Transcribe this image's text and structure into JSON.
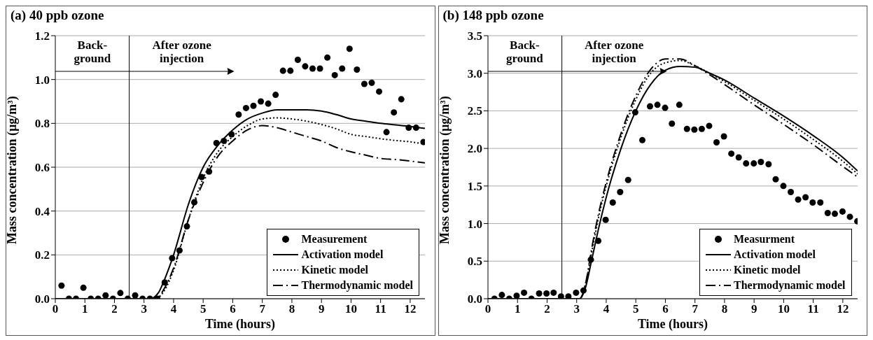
{
  "chart_data": [
    {
      "type": "line",
      "title": "(a) 40 ppb ozone",
      "xlabel": "Time (hours)",
      "ylabel": "Mass concentration (µg/m³)",
      "xlim": [
        0,
        12.5
      ],
      "xticks": [
        0,
        1,
        2,
        3,
        4,
        5,
        6,
        7,
        8,
        9,
        10,
        11,
        12
      ],
      "ylim": [
        0,
        1.2
      ],
      "yticks": [
        {
          "value": 0,
          "label": "0.0"
        },
        0.2,
        0.4,
        0.6,
        0.8,
        {
          "value": 1,
          "label": "1.0"
        },
        1.2
      ],
      "grid": "y",
      "legend": "bottom right",
      "ref_lines": [
        {
          "axis": "x",
          "value": 2.5,
          "color": "#000000"
        }
      ],
      "annotations": [
        "Back-\nground",
        "After ozone\ninjection"
      ],
      "series": [
        {
          "name": "Measurement",
          "type": "scatter",
          "marker": "circle",
          "color": "#000000",
          "x": [
            0.21,
            0.46,
            0.7,
            0.95,
            1.2,
            1.45,
            1.7,
            1.95,
            2.2,
            2.45,
            2.7,
            2.95,
            3.2,
            3.45,
            3.7,
            3.95,
            4.2,
            4.45,
            4.7,
            4.95,
            5.2,
            5.45,
            5.7,
            5.96,
            6.2,
            6.45,
            6.7,
            6.95,
            7.2,
            7.45,
            7.7,
            7.95,
            8.2,
            8.45,
            8.7,
            8.95,
            9.2,
            9.45,
            9.7,
            9.95,
            10.2,
            10.45,
            10.7,
            10.95,
            11.2,
            11.45,
            11.7,
            11.95,
            12.2,
            12.45
          ],
          "values": [
            0.06,
            0,
            0,
            0.05,
            0,
            0,
            0.015,
            0,
            0.026,
            0,
            0.015,
            0,
            0,
            0,
            0.074,
            0.185,
            0.22,
            0.33,
            0.44,
            0.555,
            0.58,
            0.71,
            0.72,
            0.75,
            0.84,
            0.87,
            0.88,
            0.9,
            0.89,
            0.93,
            1.04,
            1.04,
            1.09,
            1.06,
            1.05,
            1.05,
            1.1,
            1.02,
            1.05,
            1.14,
            1.045,
            0.98,
            0.985,
            0.945,
            0.76,
            0.85,
            0.91,
            0.78,
            0.78,
            0.715
          ]
        },
        {
          "name": "Activation model",
          "type": "line",
          "marker": "none",
          "line_style": "solid",
          "color": "#000000",
          "x": [
            0,
            3.2,
            3.5,
            3.7,
            4,
            4.5,
            5,
            5.5,
            6,
            6.5,
            7,
            7.5,
            8,
            8.5,
            9,
            9.5,
            10,
            10.5,
            11,
            11.5,
            12,
            12.5
          ],
          "values": [
            0,
            0,
            0.03,
            0.09,
            0.2,
            0.43,
            0.6,
            0.7,
            0.77,
            0.82,
            0.847,
            0.862,
            0.862,
            0.862,
            0.856,
            0.84,
            0.82,
            0.81,
            0.8,
            0.793,
            0.786,
            0.777
          ]
        },
        {
          "name": "Kinetic model",
          "type": "line",
          "marker": "none",
          "line_style": "dotted",
          "color": "#000000",
          "x": [
            0,
            3.4,
            3.7,
            4,
            4.5,
            5,
            5.5,
            6,
            6.5,
            7,
            7.5,
            8,
            8.5,
            9,
            9.5,
            10,
            10.5,
            11,
            11.5,
            12,
            12.5
          ],
          "values": [
            0,
            0,
            0.04,
            0.13,
            0.36,
            0.55,
            0.67,
            0.74,
            0.79,
            0.82,
            0.825,
            0.82,
            0.81,
            0.795,
            0.775,
            0.75,
            0.74,
            0.73,
            0.722,
            0.716,
            0.705
          ]
        },
        {
          "name": "Thermodynamic model",
          "type": "line",
          "marker": "none",
          "line_style": "dashed",
          "color": "#000000",
          "x": [
            0,
            3.4,
            3.7,
            4,
            4.5,
            5,
            5.5,
            6,
            6.5,
            7,
            7.5,
            8,
            8.5,
            9,
            9.5,
            10,
            10.5,
            11,
            11.5,
            12,
            12.5
          ],
          "values": [
            0,
            0,
            0.05,
            0.14,
            0.36,
            0.53,
            0.65,
            0.72,
            0.77,
            0.79,
            0.78,
            0.76,
            0.74,
            0.72,
            0.69,
            0.67,
            0.655,
            0.64,
            0.635,
            0.628,
            0.62
          ]
        }
      ]
    },
    {
      "type": "line",
      "title": "(b) 148 ppb ozone",
      "xlabel": "Time (hours)",
      "ylabel": "Mass concentration (µg/m³)",
      "xlim": [
        0,
        12.5
      ],
      "xticks": [
        0,
        1,
        2,
        3,
        4,
        5,
        6,
        7,
        8,
        9,
        10,
        11,
        12
      ],
      "ylim": [
        0,
        3.5
      ],
      "yticks": [
        {
          "value": 0,
          "label": "0.0"
        },
        0.5,
        {
          "value": 1,
          "label": "1.0"
        },
        1.5,
        {
          "value": 2,
          "label": "2.0"
        },
        2.5,
        {
          "value": 3,
          "label": "3.0"
        },
        3.5
      ],
      "grid": "y",
      "legend": "bottom right",
      "ref_lines": [
        {
          "axis": "x",
          "value": 2.5,
          "color": "#000000"
        }
      ],
      "annotations": [
        "Back-\nground",
        "After ozone\ninjection"
      ],
      "series": [
        {
          "name": "Measurment",
          "type": "scatter",
          "marker": "circle",
          "color": "#000000",
          "x": [
            0.22,
            0.47,
            0.72,
            0.97,
            1.22,
            1.47,
            1.73,
            1.98,
            2.22,
            2.47,
            2.72,
            2.98,
            3.23,
            3.48,
            3.73,
            3.98,
            4.22,
            4.47,
            4.74,
            4.98,
            5.22,
            5.48,
            5.73,
            5.99,
            6.22,
            6.47,
            6.73,
            6.98,
            7.23,
            7.48,
            7.73,
            7.98,
            8.23,
            8.48,
            8.73,
            8.99,
            9.23,
            9.49,
            9.73,
            9.99,
            10.24,
            10.49,
            10.74,
            10.98,
            11.24,
            11.49,
            11.73,
            11.99,
            12.24,
            12.49
          ],
          "values": [
            0,
            0.05,
            0,
            0.04,
            0.08,
            0,
            0.07,
            0.07,
            0.08,
            0.03,
            0.03,
            0.08,
            0.11,
            0.52,
            0.77,
            1.05,
            1.28,
            1.42,
            1.58,
            2.48,
            2.11,
            2.56,
            2.58,
            2.54,
            2.33,
            2.58,
            2.26,
            2.25,
            2.26,
            2.3,
            2.08,
            2.16,
            1.93,
            1.88,
            1.8,
            1.8,
            1.82,
            1.79,
            1.59,
            1.5,
            1.42,
            1.32,
            1.35,
            1.28,
            1.28,
            1.14,
            1.13,
            1.16,
            1.09,
            1.03
          ]
        },
        {
          "name": "Activation model",
          "type": "line",
          "marker": "none",
          "line_style": "solid",
          "color": "#000000",
          "x": [
            0,
            3.1,
            3.3,
            3.5,
            3.75,
            4,
            4.5,
            5,
            5.5,
            6,
            6.5,
            7,
            7.5,
            8,
            9,
            10,
            11,
            12,
            12.5
          ],
          "values": [
            0,
            0,
            0.15,
            0.5,
            0.95,
            1.35,
            2,
            2.5,
            2.85,
            3.04,
            3.09,
            3.08,
            3,
            2.91,
            2.67,
            2.43,
            2.17,
            1.88,
            1.7
          ]
        },
        {
          "name": "Kinetic model",
          "type": "line",
          "marker": "none",
          "line_style": "dotted",
          "color": "#000000",
          "x": [
            0,
            3.1,
            3.3,
            3.5,
            3.75,
            4,
            4.5,
            5,
            5.5,
            6,
            6.5,
            7,
            7.5,
            8,
            9,
            10,
            11,
            12,
            12.5
          ],
          "values": [
            0,
            0,
            0.2,
            0.6,
            1.1,
            1.5,
            2.15,
            2.65,
            3,
            3.14,
            3.17,
            3.1,
            3,
            2.89,
            2.64,
            2.39,
            2.12,
            1.83,
            1.66
          ]
        },
        {
          "name": "Thermodynamic model",
          "type": "line",
          "marker": "none",
          "line_style": "dashed",
          "color": "#000000",
          "x": [
            0,
            3.1,
            3.3,
            3.5,
            3.75,
            4,
            4.5,
            5,
            5.5,
            6,
            6.5,
            7,
            7.5,
            8,
            9,
            10,
            11,
            12,
            12.5
          ],
          "values": [
            0,
            0,
            0.2,
            0.65,
            1.15,
            1.55,
            2.2,
            2.7,
            3.05,
            3.19,
            3.19,
            3.1,
            2.98,
            2.85,
            2.58,
            2.32,
            2.05,
            1.76,
            1.62
          ]
        }
      ]
    }
  ]
}
